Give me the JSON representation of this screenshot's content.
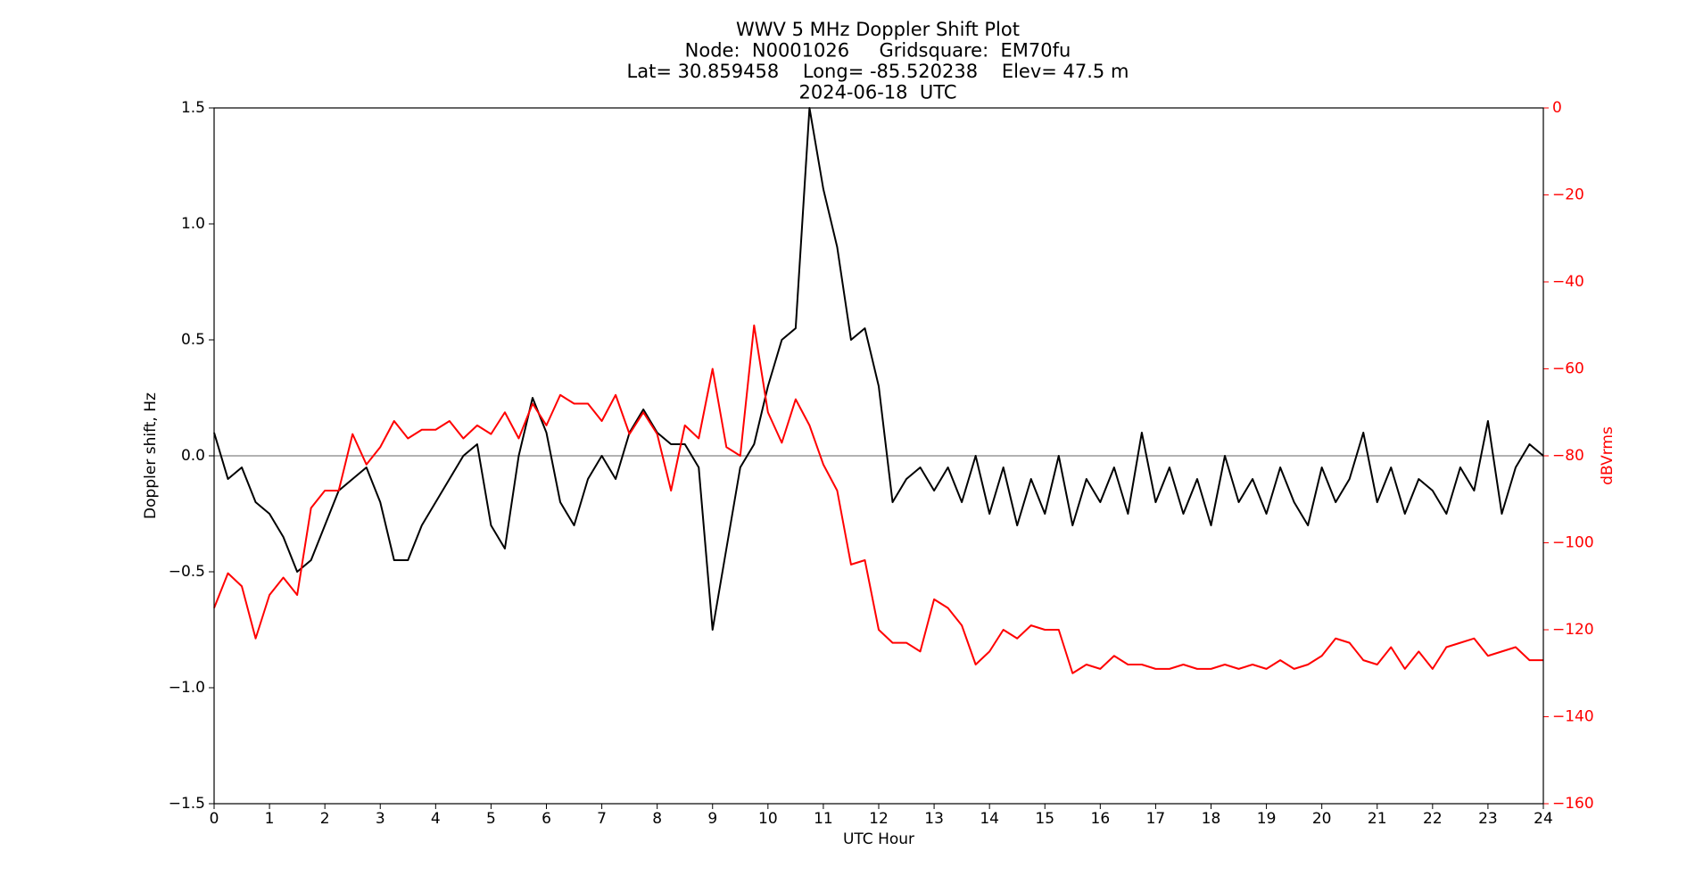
{
  "chart_data": {
    "type": "line",
    "title_lines": [
      "WWV 5 MHz Doppler Shift Plot",
      "Node:  N0001026     Gridsquare:  EM70fu",
      "Lat= 30.859458    Long= -85.520238    Elev= 47.5 m",
      "2024-06-18  UTC"
    ],
    "xlabel": "UTC Hour",
    "ylabel": "Doppler shift, Hz",
    "y2label": "dBVrms",
    "x": [
      0,
      0.25,
      0.5,
      0.75,
      1,
      1.25,
      1.5,
      1.75,
      2,
      2.25,
      2.5,
      2.75,
      3,
      3.25,
      3.5,
      3.75,
      4,
      4.25,
      4.5,
      4.75,
      5,
      5.25,
      5.5,
      5.75,
      6,
      6.25,
      6.5,
      6.75,
      7,
      7.25,
      7.5,
      7.75,
      8,
      8.25,
      8.5,
      8.75,
      9,
      9.25,
      9.5,
      9.75,
      10,
      10.25,
      10.5,
      10.75,
      11,
      11.25,
      11.5,
      11.75,
      12,
      12.25,
      12.5,
      12.75,
      13,
      13.25,
      13.5,
      13.75,
      14,
      14.25,
      14.5,
      14.75,
      15,
      15.25,
      15.5,
      15.75,
      16,
      16.25,
      16.5,
      16.75,
      17,
      17.25,
      17.5,
      17.75,
      18,
      18.25,
      18.5,
      18.75,
      19,
      19.25,
      19.5,
      19.75,
      20,
      20.25,
      20.5,
      20.75,
      21,
      21.25,
      21.5,
      21.75,
      22,
      22.25,
      22.5,
      22.75,
      23,
      23.25,
      23.5,
      23.75,
      24
    ],
    "series": [
      {
        "color": "#000000",
        "axis": "y",
        "values": [
          0.1,
          -0.1,
          -0.05,
          -0.2,
          -0.25,
          -0.35,
          -0.5,
          -0.45,
          -0.3,
          -0.15,
          -0.1,
          -0.05,
          -0.2,
          -0.45,
          -0.45,
          -0.3,
          -0.2,
          -0.1,
          0.0,
          0.05,
          -0.3,
          -0.4,
          0.0,
          0.25,
          0.1,
          -0.2,
          -0.3,
          -0.1,
          0.0,
          -0.1,
          0.1,
          0.2,
          0.1,
          0.05,
          0.05,
          -0.05,
          -0.75,
          -0.4,
          -0.05,
          0.05,
          0.3,
          0.5,
          0.55,
          1.5,
          1.15,
          0.9,
          0.5,
          0.55,
          0.3,
          -0.2,
          -0.1,
          -0.05,
          -0.15,
          -0.05,
          -0.2,
          0.0,
          -0.25,
          -0.05,
          -0.3,
          -0.1,
          -0.25,
          0.0,
          -0.3,
          -0.1,
          -0.2,
          -0.05,
          -0.25,
          0.1,
          -0.2,
          -0.05,
          -0.25,
          -0.1,
          -0.3,
          0.0,
          -0.2,
          -0.1,
          -0.25,
          -0.05,
          -0.2,
          -0.3,
          -0.05,
          -0.2,
          -0.1,
          0.1,
          -0.2,
          -0.05,
          -0.25,
          -0.1,
          -0.15,
          -0.25,
          -0.05,
          -0.15,
          0.15,
          -0.25,
          -0.05,
          0.05,
          0.0
        ]
      },
      {
        "color": "#ff0000",
        "axis": "y2",
        "values": [
          -115,
          -107,
          -110,
          -122,
          -112,
          -108,
          -112,
          -92,
          -88,
          -88,
          -75,
          -82,
          -78,
          -72,
          -76,
          -74,
          -74,
          -72,
          -76,
          -73,
          -75,
          -70,
          -76,
          -68,
          -73,
          -66,
          -68,
          -68,
          -72,
          -66,
          -75,
          -70,
          -75,
          -88,
          -73,
          -76,
          -60,
          -78,
          -80,
          -50,
          -70,
          -77,
          -67,
          -73,
          -82,
          -88,
          -105,
          -104,
          -120,
          -123,
          -123,
          -125,
          -113,
          -115,
          -119,
          -128,
          -125,
          -120,
          -122,
          -119,
          -120,
          -120,
          -130,
          -128,
          -129,
          -126,
          -128,
          -128,
          -129,
          -129,
          -128,
          -129,
          -129,
          -128,
          -129,
          -128,
          -129,
          -127,
          -129,
          -128,
          -126,
          -122,
          -123,
          -127,
          -128,
          -124,
          -129,
          -125,
          -129,
          -124,
          -123,
          -122,
          -126,
          -125,
          -124,
          -127,
          -127
        ]
      }
    ],
    "xlim": [
      0,
      24
    ],
    "xticks": [
      0,
      1,
      2,
      3,
      4,
      5,
      6,
      7,
      8,
      9,
      10,
      11,
      12,
      13,
      14,
      15,
      16,
      17,
      18,
      19,
      20,
      21,
      22,
      23,
      24
    ],
    "ylim": [
      -1.5,
      1.5
    ],
    "yticks": [
      {
        "value": -1.5,
        "label": "−1.5"
      },
      {
        "value": -1.0,
        "label": "−1.0"
      },
      {
        "value": -0.5,
        "label": "−0.5"
      },
      {
        "value": 0,
        "label": "0.0"
      },
      0.5,
      {
        "value": 1.0,
        "label": "1.0"
      },
      1.5
    ],
    "y2lim": [
      -160,
      0
    ],
    "y2ticks": [
      {
        "value": -160,
        "label": "−160"
      },
      {
        "value": -140,
        "label": "−140"
      },
      {
        "value": -120,
        "label": "−120"
      },
      {
        "value": -100,
        "label": "−100"
      },
      {
        "value": -80,
        "label": "−80"
      },
      {
        "value": -60,
        "label": "−60"
      },
      {
        "value": -40,
        "label": "−40"
      },
      {
        "value": -20,
        "label": "−20"
      },
      0
    ],
    "y2color": "#ff0000",
    "zero_line": true,
    "zero_line_color": "#999999"
  }
}
